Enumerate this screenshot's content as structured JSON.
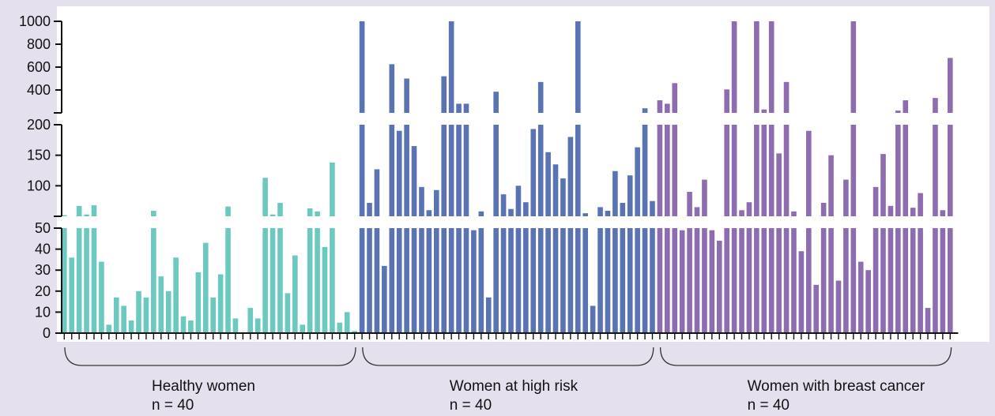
{
  "chart_data": {
    "type": "bar",
    "segments": [
      {
        "name": "lower",
        "range": [
          0,
          50
        ],
        "ticks": [
          0,
          10,
          20,
          30,
          40,
          50
        ],
        "tick_labels": [
          "0",
          "10",
          "20",
          "30",
          "40",
          "50"
        ]
      },
      {
        "name": "middle",
        "range": [
          50,
          200
        ],
        "ticks": [
          100,
          150,
          200
        ],
        "tick_labels": [
          "100",
          "150",
          "200"
        ]
      },
      {
        "name": "upper",
        "range": [
          200,
          1000
        ],
        "ticks": [
          400,
          600,
          800,
          1000
        ],
        "tick_labels": [
          "400",
          "600",
          "800",
          "1000"
        ]
      }
    ],
    "groups": [
      {
        "name": "Healthy women",
        "count_label": "n = 40",
        "color": "#6cc9c0",
        "values": [
          52,
          36,
          67,
          53,
          68,
          34,
          4,
          17,
          13,
          6,
          20,
          17,
          59,
          27,
          20,
          36,
          8,
          6,
          29,
          43,
          17,
          28,
          66,
          7,
          0,
          12,
          7,
          113,
          53,
          72,
          19,
          37,
          4,
          63,
          58,
          41,
          138,
          5,
          10,
          1
        ]
      },
      {
        "name": "Women at high risk",
        "count_label": "n = 40",
        "color": "#5a73b3",
        "values": [
          1000,
          72,
          127,
          32,
          625,
          190,
          500,
          165,
          98,
          60,
          93,
          520,
          1000,
          280,
          280,
          49,
          58,
          17,
          385,
          86,
          62,
          100,
          73,
          193,
          470,
          155,
          135,
          112,
          180,
          1000,
          55,
          13,
          65,
          59,
          124,
          72,
          117,
          163,
          240,
          75
        ]
      },
      {
        "name": "Women with breast cancer",
        "count_label": "n = 40",
        "color": "#8e6cb0",
        "values": [
          310,
          280,
          460,
          49,
          90,
          65,
          110,
          49,
          44,
          405,
          1000,
          60,
          73,
          1000,
          230,
          1000,
          153,
          470,
          58,
          39,
          190,
          23,
          72,
          150,
          25,
          110,
          1000,
          34,
          30,
          98,
          152,
          67,
          220,
          310,
          64,
          88,
          12,
          330,
          60,
          680
        ]
      }
    ]
  }
}
